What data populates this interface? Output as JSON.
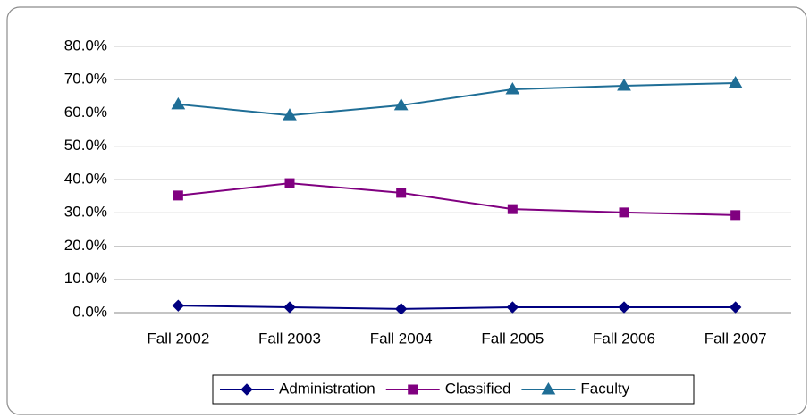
{
  "chart_data": {
    "type": "line",
    "categories": [
      "Fall 2002",
      "Fall 2003",
      "Fall 2004",
      "Fall 2005",
      "Fall 2006",
      "Fall 2007"
    ],
    "series": [
      {
        "name": "Administration",
        "color": "#000080",
        "marker": "diamond",
        "values": [
          2.1,
          1.6,
          1.1,
          1.6,
          1.6,
          1.6
        ]
      },
      {
        "name": "Classified",
        "color": "#800080",
        "marker": "square",
        "values": [
          35.2,
          38.9,
          36.0,
          31.1,
          30.1,
          29.3
        ]
      },
      {
        "name": "Faculty",
        "color": "#1f6e96",
        "marker": "triangle",
        "values": [
          62.6,
          59.3,
          62.3,
          67.1,
          68.2,
          69.0
        ]
      }
    ],
    "ylim": [
      0,
      80
    ],
    "yticks": [
      {
        "value": 0,
        "label": "0.0%"
      },
      {
        "value": 10,
        "label": "10.0%"
      },
      {
        "value": 20,
        "label": "20.0%"
      },
      {
        "value": 30,
        "label": "30.0%"
      },
      {
        "value": 40,
        "label": "40.0%"
      },
      {
        "value": 50,
        "label": "50.0%"
      },
      {
        "value": 60,
        "label": "60.0%"
      },
      {
        "value": 70,
        "label": "70.0%"
      },
      {
        "value": 80,
        "label": "80.0%"
      }
    ],
    "grid": true,
    "legend": "bottom"
  }
}
